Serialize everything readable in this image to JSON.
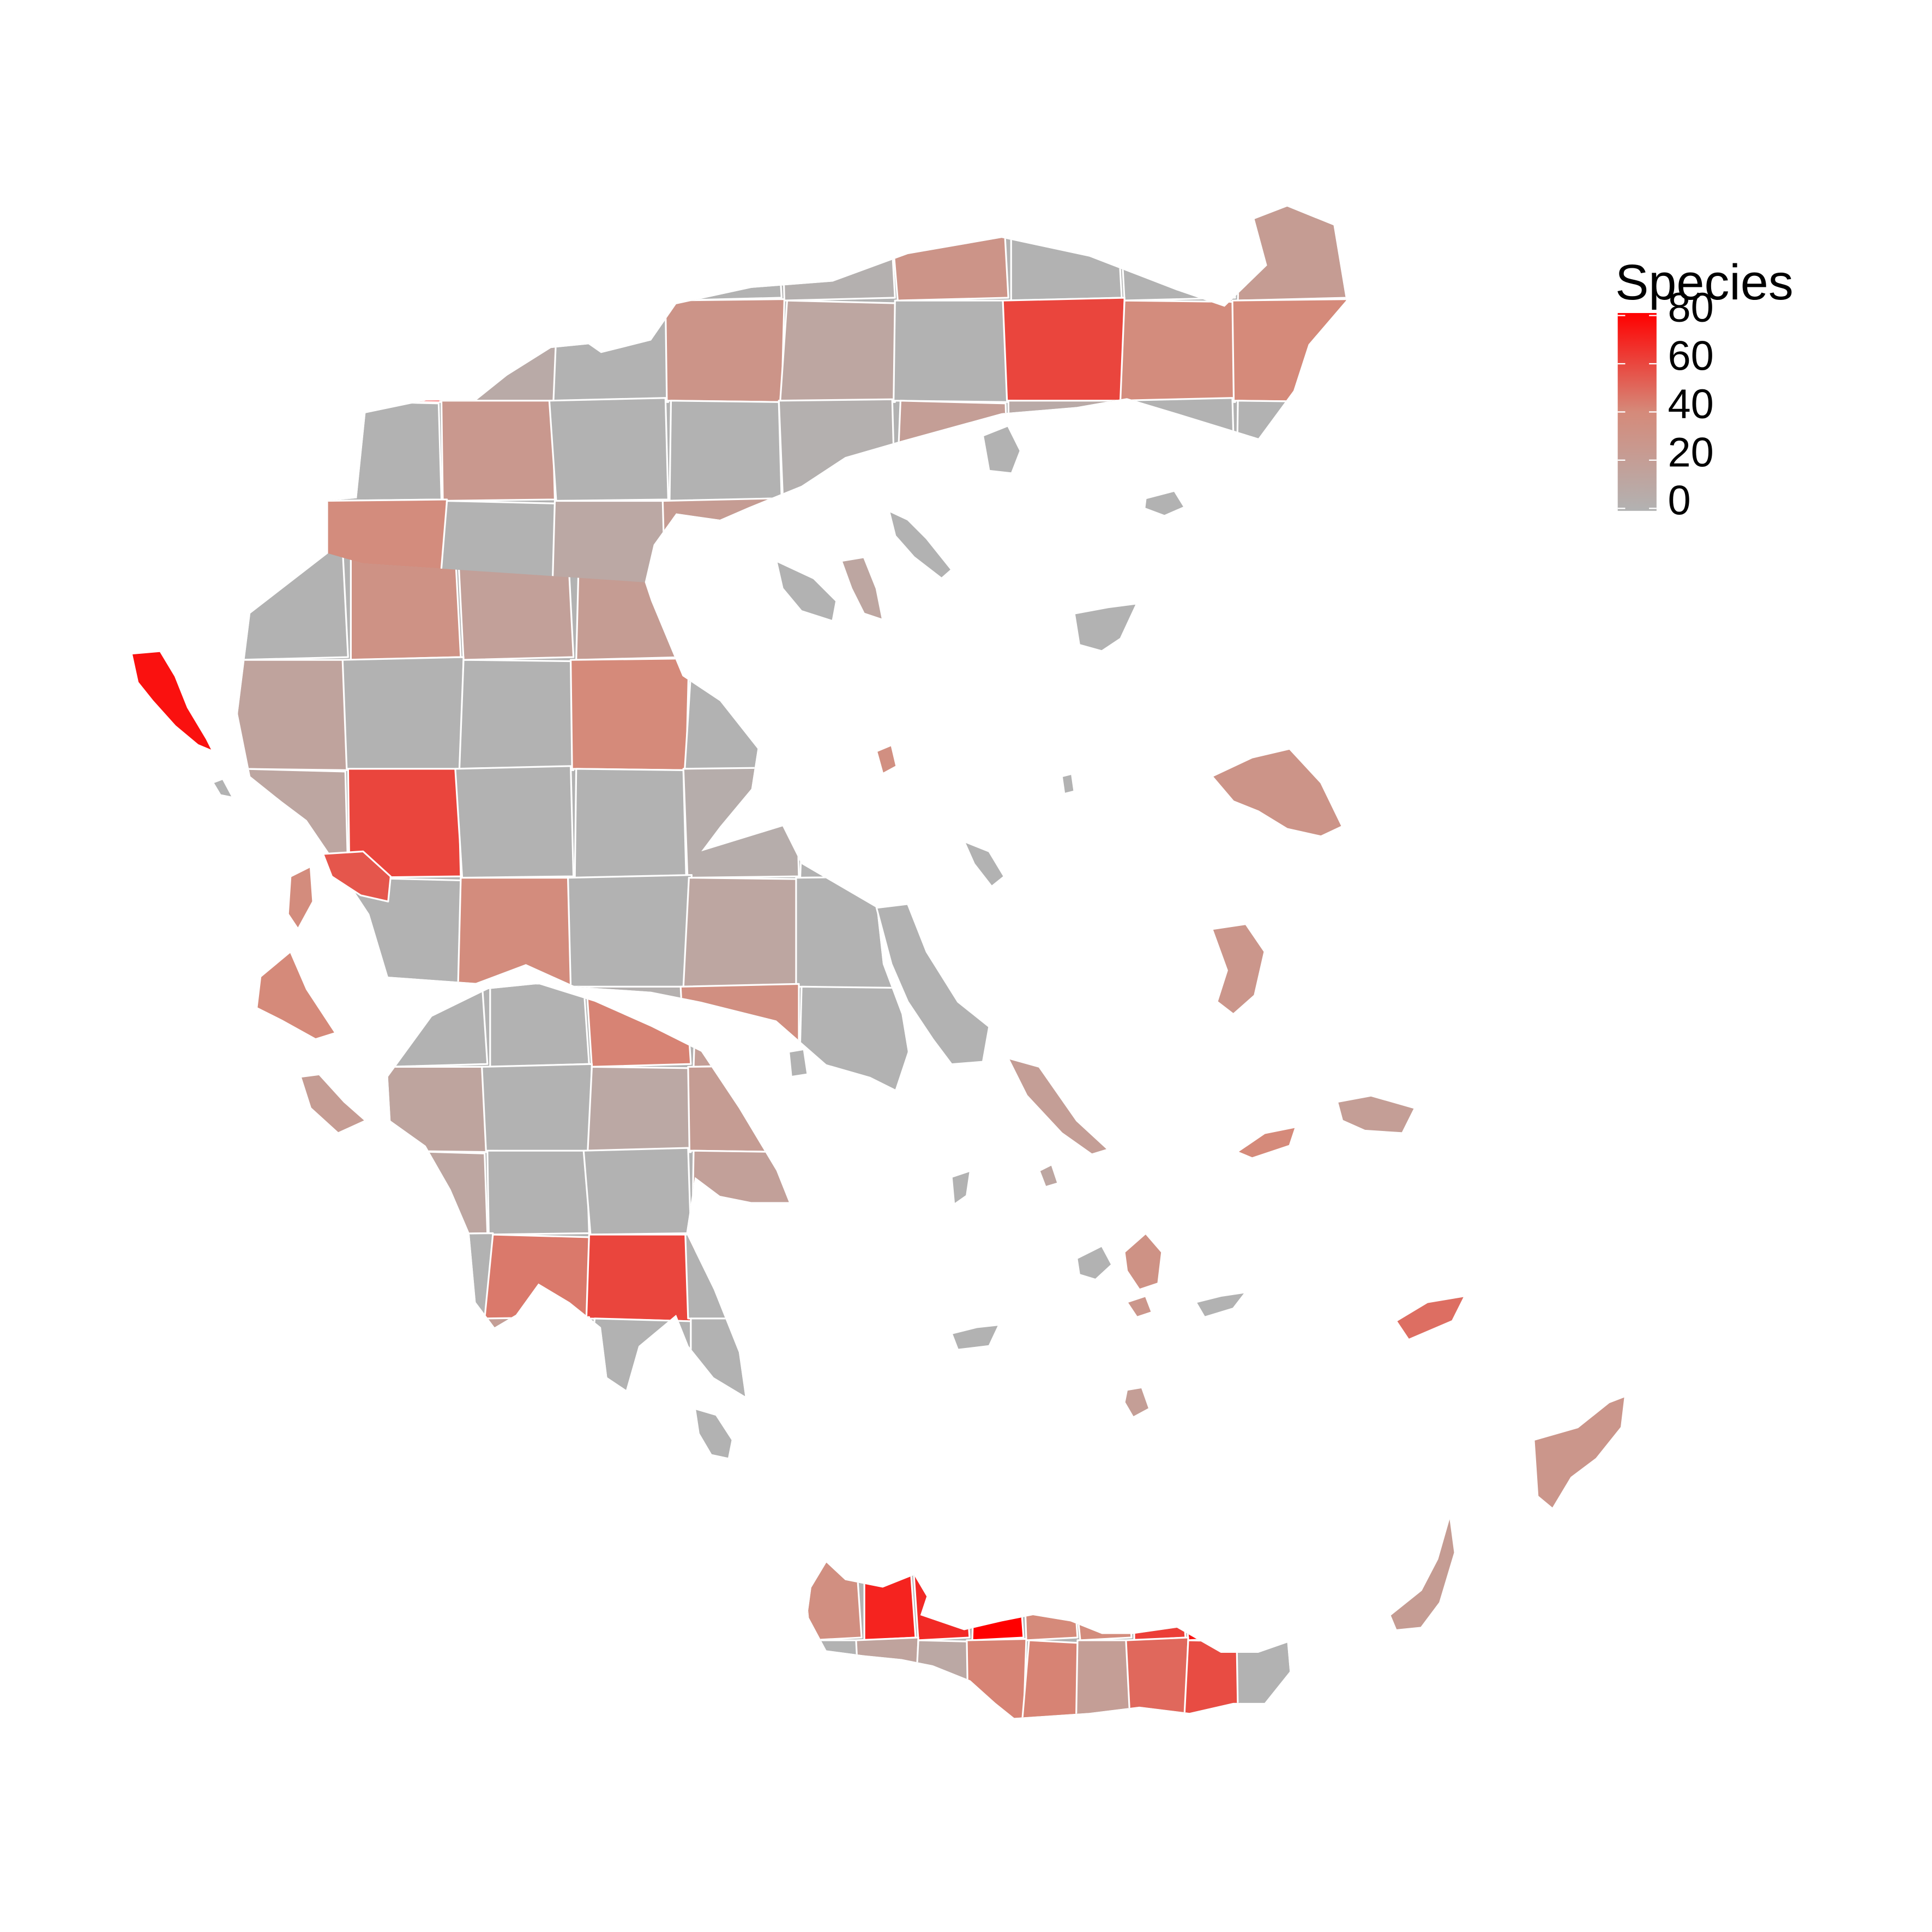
{
  "legend": {
    "title": "Species",
    "min": 0,
    "max": 80,
    "ticks": [
      0,
      20,
      40,
      60,
      80
    ],
    "tick_labels": [
      "0",
      "20",
      "40",
      "60",
      "80"
    ],
    "low_color": "#b2b2b2",
    "mid_color": "#d58a7a",
    "high_color": "#ff0000"
  },
  "map_data": {
    "type": "choropleth",
    "variable": "Species",
    "no_data_color": "#b2b2b2",
    "border_color": "#ffffff",
    "region_groups": [
      {
        "group": "mainland-north",
        "values": [
          0,
          18,
          5,
          0,
          2,
          30,
          0,
          0,
          22,
          80,
          8,
          0,
          30,
          12,
          0,
          60,
          38,
          40,
          0,
          26,
          0,
          0,
          2,
          20,
          8,
          0,
          0,
          38,
          0,
          10,
          22,
          45,
          50,
          0
        ]
      },
      {
        "group": "mainland-central",
        "values": [
          0,
          32,
          18,
          22,
          0,
          0,
          15,
          0,
          0,
          40,
          0,
          0,
          12,
          60,
          0,
          0,
          5,
          0,
          0,
          0,
          38,
          0,
          12,
          0,
          0,
          48,
          0,
          2,
          35
        ]
      },
      {
        "group": "peloponnese",
        "values": [
          0,
          0,
          42,
          20,
          14,
          0,
          10,
          22,
          12,
          0,
          0,
          18,
          0,
          45,
          60,
          0,
          15,
          20
        ]
      },
      {
        "group": "ionian-islands",
        "values": [
          75,
          55,
          38,
          40,
          22,
          0
        ]
      },
      {
        "group": "aegean-islands",
        "values": [
          0,
          0,
          30,
          28,
          20,
          0,
          0,
          20,
          40,
          32,
          0,
          48,
          0,
          0,
          0,
          20,
          0,
          12,
          28,
          22,
          0,
          12,
          0,
          0,
          0,
          0,
          35,
          28
        ]
      },
      {
        "group": "crete",
        "values": [
          35,
          70,
          68,
          80,
          40,
          38,
          62,
          75,
          0,
          0,
          15,
          10,
          42,
          42,
          20,
          50,
          58,
          0
        ]
      }
    ]
  }
}
